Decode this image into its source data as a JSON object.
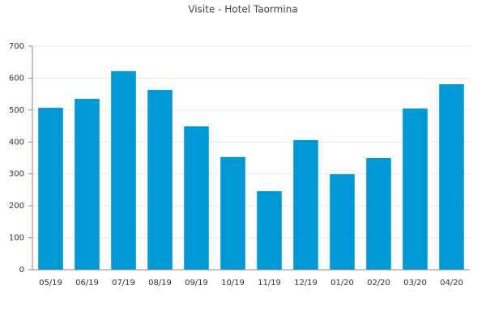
{
  "chart_data": {
    "type": "bar",
    "title": "Visite - Hotel Taormina",
    "categories": [
      "05/19",
      "06/19",
      "07/19",
      "08/19",
      "09/19",
      "10/19",
      "11/19",
      "12/19",
      "01/20",
      "02/20",
      "03/20",
      "04/20"
    ],
    "values": [
      507,
      535,
      622,
      563,
      449,
      353,
      246,
      406,
      299,
      350,
      505,
      581
    ],
    "color": "#0099d5",
    "ylim": [
      0,
      700
    ],
    "yticks": [
      0,
      100,
      200,
      300,
      400,
      500,
      600,
      700
    ],
    "grid": true
  }
}
